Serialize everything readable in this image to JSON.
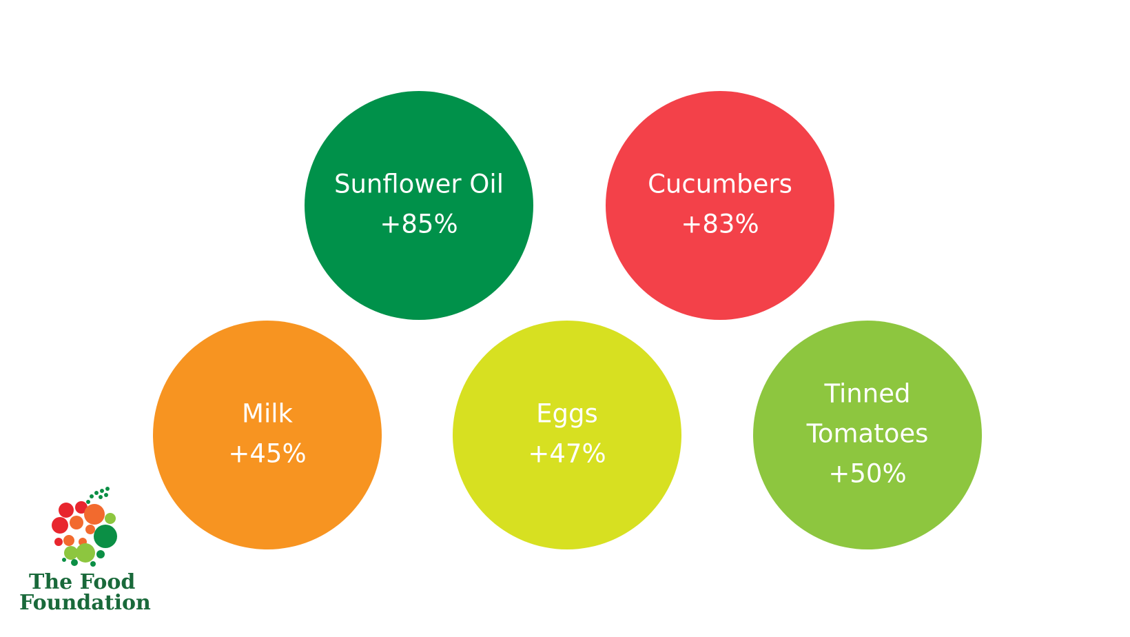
{
  "items": [
    {
      "label_lines": [
        "Sunflower Oil"
      ],
      "value": "+85%",
      "color": "#00914a"
    },
    {
      "label_lines": [
        "Cucumbers"
      ],
      "value": "+83%",
      "color": "#f34149"
    },
    {
      "label_lines": [
        "Milk"
      ],
      "value": "+45%",
      "color": "#f79421"
    },
    {
      "label_lines": [
        "Eggs"
      ],
      "value": "+47%",
      "color": "#d7e021"
    },
    {
      "label_lines": [
        "Tinned",
        "Tomatoes"
      ],
      "value": "+50%",
      "color": "#8dc63f"
    }
  ],
  "logo": {
    "line1": "The Food",
    "line2": "Foundation"
  }
}
